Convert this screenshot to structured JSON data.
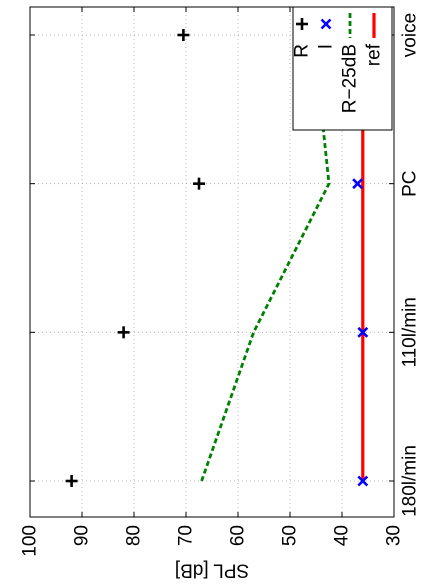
{
  "chart_data": {
    "type": "scatter",
    "orientation": "rotated-90-clockwise",
    "categories": [
      "180l/min",
      "110l/min",
      "PC",
      "voice"
    ],
    "ylabel": "SPL [dB]",
    "ylim": [
      30,
      100
    ],
    "yticks": [
      30,
      40,
      50,
      60,
      70,
      80,
      90,
      100
    ],
    "grid": true,
    "legend_position": "top-right",
    "series": [
      {
        "name": "R",
        "marker": "+",
        "line": "none",
        "color": "#000000",
        "values": [
          92,
          82,
          67.5,
          70.5
        ]
      },
      {
        "name": "I",
        "marker": "x",
        "line": "none",
        "color": "#0000ff",
        "values": [
          36,
          36,
          37,
          38.5
        ]
      },
      {
        "name": "R−25dB",
        "marker": "none",
        "line": "dashed",
        "color": "#008000",
        "values": [
          67,
          57,
          42.5,
          45.5
        ]
      },
      {
        "name": "ref",
        "marker": "none",
        "line": "solid",
        "color": "#ff0000",
        "values": [
          36,
          36,
          36,
          36
        ]
      }
    ]
  }
}
